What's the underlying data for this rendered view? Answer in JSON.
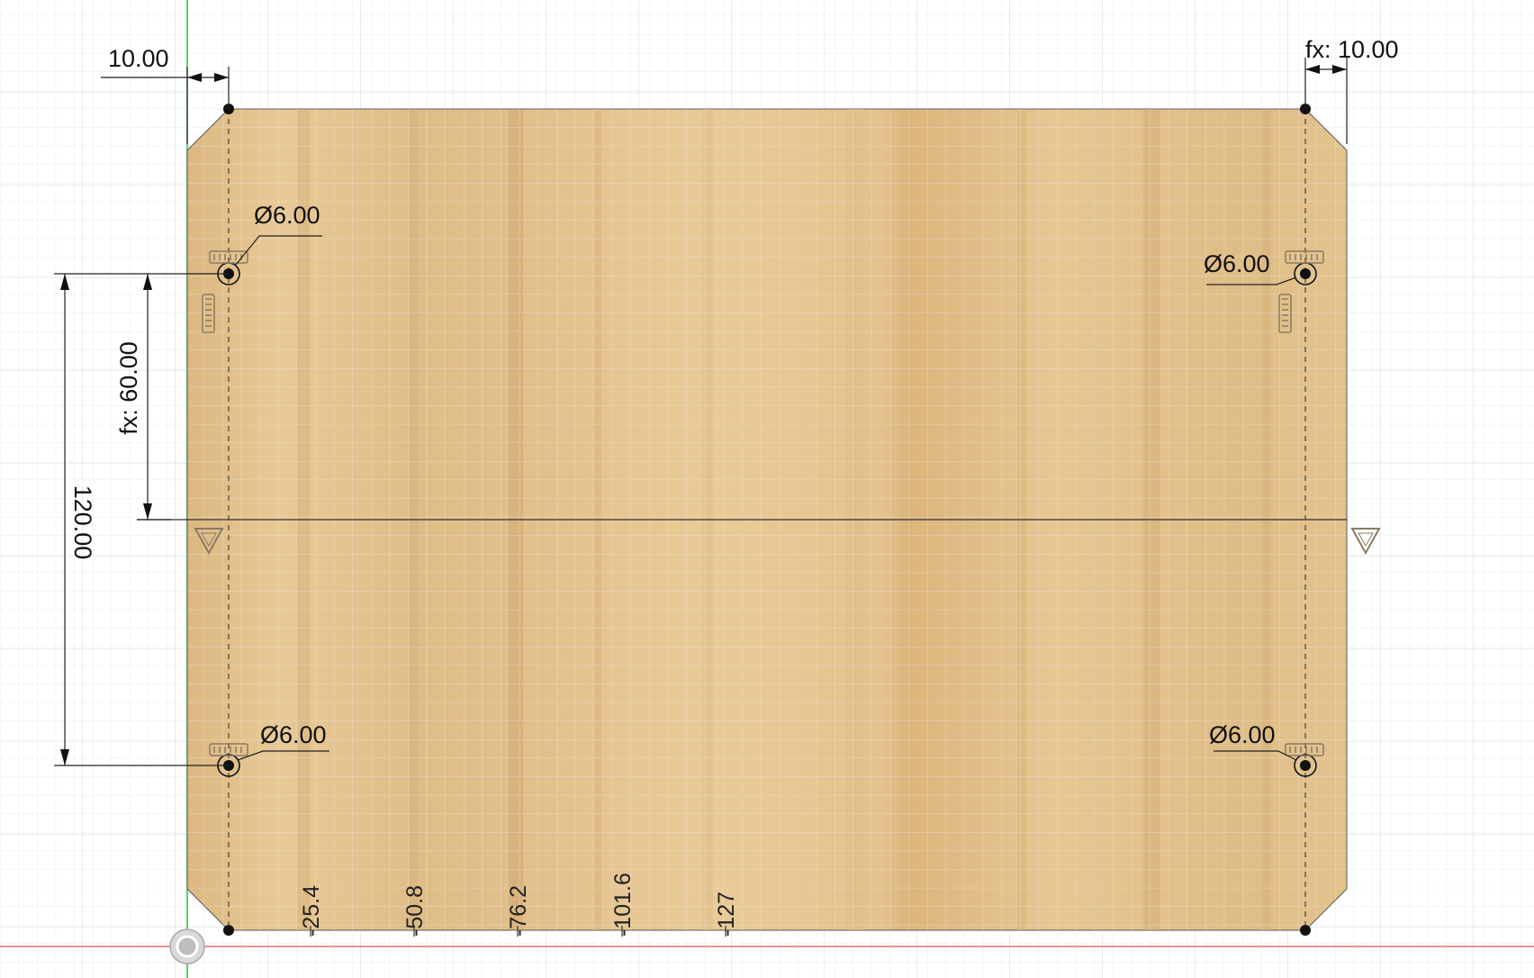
{
  "dimensions": {
    "left_offset": "10.00",
    "right_offset": "fx: 10.00",
    "upper_spacing": "fx: 60.00",
    "total_spacing": "120.00",
    "hole_top_left": "Ø6.00",
    "hole_top_right": "Ø6.00",
    "hole_bottom_left": "Ø6.00",
    "hole_bottom_right": "Ø6.00"
  },
  "ruler": {
    "ticks": [
      "-25.4",
      "-50.8",
      "-76.2",
      "-101.6",
      "-127"
    ]
  },
  "colors": {
    "wood_light": "#e6c692",
    "wood_dark": "#c9a06a",
    "grid_minor": "#e8ecef",
    "grid_major": "#d2d8dd",
    "y_axis": "#2fbf3a",
    "x_axis": "#e05050"
  }
}
